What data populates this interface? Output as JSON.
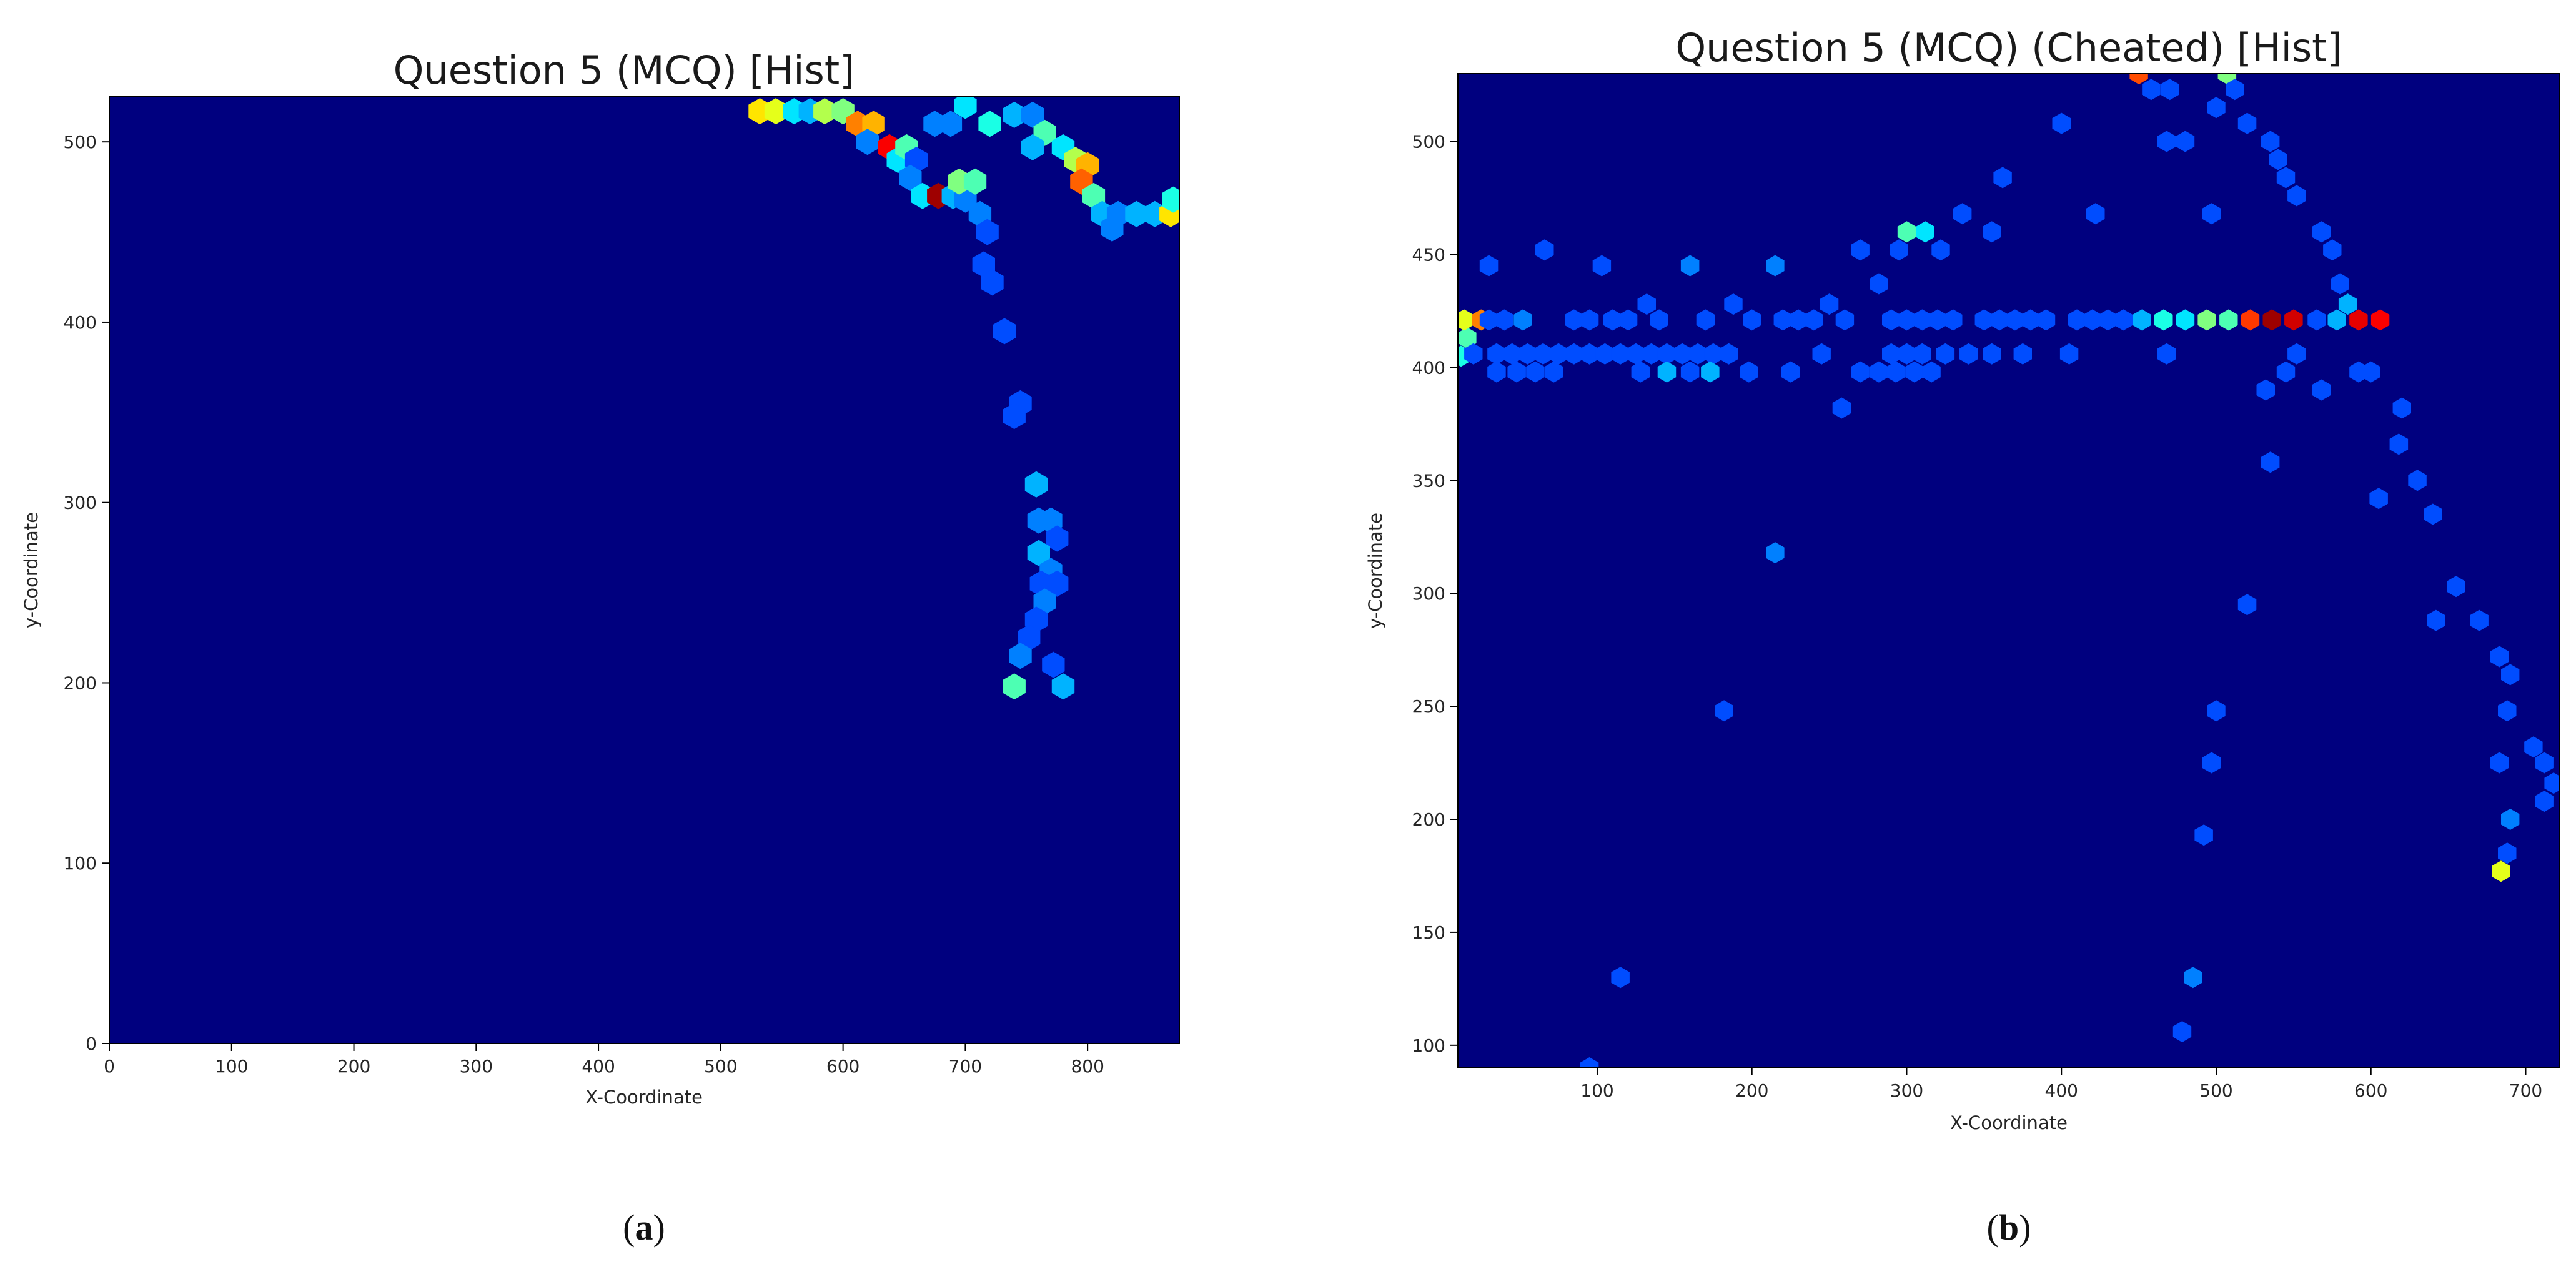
{
  "chart_data": [
    {
      "type": "heatmap",
      "subtype": "hexbin",
      "title": "Question 5 (MCQ) [Hist]",
      "xlabel": "X-Coordinate",
      "ylabel": "y-Coordinate",
      "xlim": [
        0,
        875
      ],
      "ylim": [
        0,
        525
      ],
      "xticks": [
        0,
        100,
        200,
        300,
        400,
        500,
        600,
        700,
        800
      ],
      "yticks": [
        0,
        100,
        200,
        300,
        400,
        500
      ],
      "colormap": "jet",
      "background_color": "#00007f",
      "grid": false,
      "caption_letter": "a",
      "bins_note": "count level 0-1 on jet colormap",
      "points": [
        [
          532,
          517,
          0.65
        ],
        [
          545,
          517,
          0.6
        ],
        [
          560,
          517,
          0.35
        ],
        [
          573,
          517,
          0.3
        ],
        [
          585,
          517,
          0.55
        ],
        [
          600,
          517,
          0.5
        ],
        [
          612,
          510,
          0.75
        ],
        [
          625,
          510,
          0.7
        ],
        [
          620,
          500,
          0.25
        ],
        [
          638,
          497,
          0.88
        ],
        [
          645,
          490,
          0.35
        ],
        [
          652,
          497,
          0.45
        ],
        [
          660,
          490,
          0.2
        ],
        [
          655,
          480,
          0.25
        ],
        [
          665,
          470,
          0.35
        ],
        [
          678,
          470,
          0.97
        ],
        [
          690,
          470,
          0.3
        ],
        [
          700,
          468,
          0.25
        ],
        [
          695,
          478,
          0.5
        ],
        [
          708,
          478,
          0.45
        ],
        [
          675,
          510,
          0.25
        ],
        [
          688,
          510,
          0.25
        ],
        [
          700,
          520,
          0.35
        ],
        [
          720,
          510,
          0.4
        ],
        [
          740,
          515,
          0.3
        ],
        [
          755,
          515,
          0.25
        ],
        [
          765,
          505,
          0.45
        ],
        [
          755,
          497,
          0.3
        ],
        [
          780,
          497,
          0.35
        ],
        [
          790,
          490,
          0.55
        ],
        [
          800,
          487,
          0.7
        ],
        [
          795,
          478,
          0.78
        ],
        [
          805,
          470,
          0.45
        ],
        [
          812,
          460,
          0.3
        ],
        [
          825,
          460,
          0.25
        ],
        [
          840,
          460,
          0.3
        ],
        [
          855,
          460,
          0.3
        ],
        [
          868,
          460,
          0.65
        ],
        [
          870,
          468,
          0.4
        ],
        [
          820,
          452,
          0.25
        ],
        [
          712,
          460,
          0.25
        ],
        [
          718,
          450,
          0.2
        ],
        [
          715,
          432,
          0.2
        ],
        [
          722,
          422,
          0.2
        ],
        [
          732,
          395,
          0.2
        ],
        [
          745,
          355,
          0.2
        ],
        [
          740,
          348,
          0.2
        ],
        [
          758,
          310,
          0.3
        ],
        [
          760,
          290,
          0.25
        ],
        [
          770,
          290,
          0.25
        ],
        [
          775,
          280,
          0.2
        ],
        [
          760,
          272,
          0.3
        ],
        [
          770,
          262,
          0.25
        ],
        [
          762,
          255,
          0.2
        ],
        [
          775,
          255,
          0.2
        ],
        [
          765,
          245,
          0.25
        ],
        [
          758,
          235,
          0.2
        ],
        [
          752,
          225,
          0.2
        ],
        [
          745,
          215,
          0.25
        ],
        [
          740,
          198,
          0.45
        ],
        [
          780,
          198,
          0.3
        ],
        [
          772,
          210,
          0.2
        ]
      ]
    },
    {
      "type": "heatmap",
      "subtype": "hexbin",
      "title": "Question 5 (MCQ) (Cheated) [Hist]",
      "xlabel": "X-Coordinate",
      "ylabel": "y-Coordinate",
      "xlim": [
        10,
        722
      ],
      "ylim": [
        90,
        530
      ],
      "xticks": [
        100,
        200,
        300,
        400,
        500,
        600,
        700
      ],
      "yticks": [
        100,
        150,
        200,
        250,
        300,
        350,
        400,
        450,
        500
      ],
      "colormap": "jet",
      "background_color": "#00007f",
      "grid": false,
      "caption_letter": "b",
      "bins_note": "count level 0-1 on jet colormap",
      "points": [
        [
          12,
          405,
          0.4
        ],
        [
          16,
          413,
          0.45
        ],
        [
          14,
          421,
          0.6
        ],
        [
          25,
          421,
          0.75
        ],
        [
          30,
          445,
          0.2
        ],
        [
          40,
          421,
          0.2
        ],
        [
          52,
          421,
          0.25
        ],
        [
          66,
          452,
          0.2
        ],
        [
          85,
          421,
          0.2
        ],
        [
          95,
          421,
          0.2
        ],
        [
          103,
          445,
          0.2
        ],
        [
          110,
          421,
          0.2
        ],
        [
          120,
          421,
          0.2
        ],
        [
          132,
          428,
          0.2
        ],
        [
          140,
          421,
          0.2
        ],
        [
          160,
          445,
          0.25
        ],
        [
          170,
          421,
          0.2
        ],
        [
          188,
          428,
          0.2
        ],
        [
          200,
          421,
          0.2
        ],
        [
          215,
          445,
          0.25
        ],
        [
          220,
          421,
          0.2
        ],
        [
          230,
          421,
          0.2
        ],
        [
          240,
          421,
          0.2
        ],
        [
          250,
          428,
          0.2
        ],
        [
          270,
          452,
          0.2
        ],
        [
          282,
          437,
          0.2
        ],
        [
          295,
          452,
          0.2
        ],
        [
          300,
          460,
          0.45
        ],
        [
          312,
          460,
          0.35
        ],
        [
          322,
          452,
          0.2
        ],
        [
          336,
          468,
          0.2
        ],
        [
          355,
          460,
          0.2
        ],
        [
          362,
          484,
          0.2
        ],
        [
          400,
          508,
          0.2
        ],
        [
          422,
          468,
          0.2
        ],
        [
          450,
          530,
          0.8
        ],
        [
          458,
          523,
          0.2
        ],
        [
          470,
          523,
          0.2
        ],
        [
          468,
          500,
          0.2
        ],
        [
          480,
          500,
          0.2
        ],
        [
          497,
          468,
          0.2
        ],
        [
          500,
          515,
          0.2
        ],
        [
          507,
          530,
          0.5
        ],
        [
          512,
          523,
          0.2
        ],
        [
          520,
          508,
          0.2
        ],
        [
          535,
          500,
          0.2
        ],
        [
          540,
          492,
          0.2
        ],
        [
          545,
          484,
          0.2
        ],
        [
          552,
          476,
          0.2
        ],
        [
          568,
          460,
          0.2
        ],
        [
          575,
          452,
          0.2
        ],
        [
          580,
          437,
          0.2
        ],
        [
          585,
          428,
          0.3
        ],
        [
          30,
          421,
          0.2
        ],
        [
          260,
          421,
          0.2
        ],
        [
          290,
          421,
          0.2
        ],
        [
          300,
          421,
          0.2
        ],
        [
          310,
          421,
          0.2
        ],
        [
          320,
          421,
          0.2
        ],
        [
          330,
          421,
          0.2
        ],
        [
          350,
          421,
          0.2
        ],
        [
          360,
          421,
          0.2
        ],
        [
          370,
          421,
          0.2
        ],
        [
          380,
          421,
          0.2
        ],
        [
          390,
          421,
          0.2
        ],
        [
          410,
          421,
          0.2
        ],
        [
          420,
          421,
          0.2
        ],
        [
          430,
          421,
          0.2
        ],
        [
          440,
          421,
          0.2
        ],
        [
          452,
          421,
          0.3
        ],
        [
          466,
          421,
          0.4
        ],
        [
          480,
          421,
          0.35
        ],
        [
          494,
          421,
          0.5
        ],
        [
          508,
          421,
          0.45
        ],
        [
          522,
          421,
          0.82
        ],
        [
          536,
          421,
          0.97
        ],
        [
          550,
          421,
          0.92
        ],
        [
          565,
          421,
          0.2
        ],
        [
          578,
          421,
          0.3
        ],
        [
          592,
          421,
          0.9
        ],
        [
          606,
          421,
          0.88
        ],
        [
          20,
          406,
          0.2
        ],
        [
          35,
          406,
          0.2
        ],
        [
          45,
          406,
          0.2
        ],
        [
          55,
          406,
          0.2
        ],
        [
          65,
          406,
          0.2
        ],
        [
          75,
          406,
          0.2
        ],
        [
          85,
          406,
          0.2
        ],
        [
          95,
          406,
          0.2
        ],
        [
          105,
          406,
          0.2
        ],
        [
          115,
          406,
          0.2
        ],
        [
          125,
          406,
          0.2
        ],
        [
          135,
          406,
          0.2
        ],
        [
          145,
          406,
          0.2
        ],
        [
          155,
          406,
          0.2
        ],
        [
          165,
          406,
          0.2
        ],
        [
          175,
          406,
          0.2
        ],
        [
          185,
          406,
          0.2
        ],
        [
          245,
          406,
          0.2
        ],
        [
          290,
          406,
          0.2
        ],
        [
          300,
          406,
          0.2
        ],
        [
          310,
          406,
          0.2
        ],
        [
          325,
          406,
          0.2
        ],
        [
          340,
          406,
          0.2
        ],
        [
          355,
          406,
          0.2
        ],
        [
          375,
          406,
          0.2
        ],
        [
          405,
          406,
          0.2
        ],
        [
          468,
          406,
          0.2
        ],
        [
          552,
          406,
          0.2
        ],
        [
          35,
          398,
          0.2
        ],
        [
          48,
          398,
          0.2
        ],
        [
          60,
          398,
          0.2
        ],
        [
          72,
          398,
          0.2
        ],
        [
          128,
          398,
          0.2
        ],
        [
          145,
          398,
          0.3
        ],
        [
          160,
          398,
          0.2
        ],
        [
          173,
          398,
          0.3
        ],
        [
          198,
          398,
          0.2
        ],
        [
          225,
          398,
          0.2
        ],
        [
          270,
          398,
          0.2
        ],
        [
          282,
          398,
          0.2
        ],
        [
          293,
          398,
          0.2
        ],
        [
          305,
          398,
          0.2
        ],
        [
          316,
          398,
          0.2
        ],
        [
          545,
          398,
          0.2
        ],
        [
          592,
          398,
          0.2
        ],
        [
          600,
          398,
          0.2
        ],
        [
          258,
          382,
          0.2
        ],
        [
          532,
          390,
          0.2
        ],
        [
          568,
          390,
          0.2
        ],
        [
          620,
          382,
          0.2
        ],
        [
          618,
          366,
          0.2
        ],
        [
          630,
          350,
          0.2
        ],
        [
          605,
          342,
          0.2
        ],
        [
          535,
          358,
          0.2
        ],
        [
          640,
          335,
          0.2
        ],
        [
          655,
          303,
          0.2
        ],
        [
          642,
          288,
          0.2
        ],
        [
          670,
          288,
          0.2
        ],
        [
          520,
          295,
          0.2
        ],
        [
          215,
          318,
          0.25
        ],
        [
          182,
          248,
          0.2
        ],
        [
          683,
          272,
          0.2
        ],
        [
          690,
          264,
          0.2
        ],
        [
          688,
          248,
          0.2
        ],
        [
          705,
          232,
          0.2
        ],
        [
          712,
          225,
          0.2
        ],
        [
          718,
          216,
          0.2
        ],
        [
          712,
          208,
          0.2
        ],
        [
          683,
          225,
          0.2
        ],
        [
          690,
          200,
          0.25
        ],
        [
          688,
          185,
          0.2
        ],
        [
          684,
          177,
          0.6
        ],
        [
          500,
          248,
          0.2
        ],
        [
          497,
          225,
          0.2
        ],
        [
          492,
          193,
          0.2
        ],
        [
          485,
          130,
          0.25
        ],
        [
          478,
          106,
          0.2
        ],
        [
          115,
          130,
          0.2
        ],
        [
          95,
          90,
          0.2
        ]
      ]
    }
  ],
  "captions": {
    "a": {
      "open": "(",
      "letter": "a",
      "close": ")"
    },
    "b": {
      "open": "(",
      "letter": "b",
      "close": ")"
    }
  }
}
